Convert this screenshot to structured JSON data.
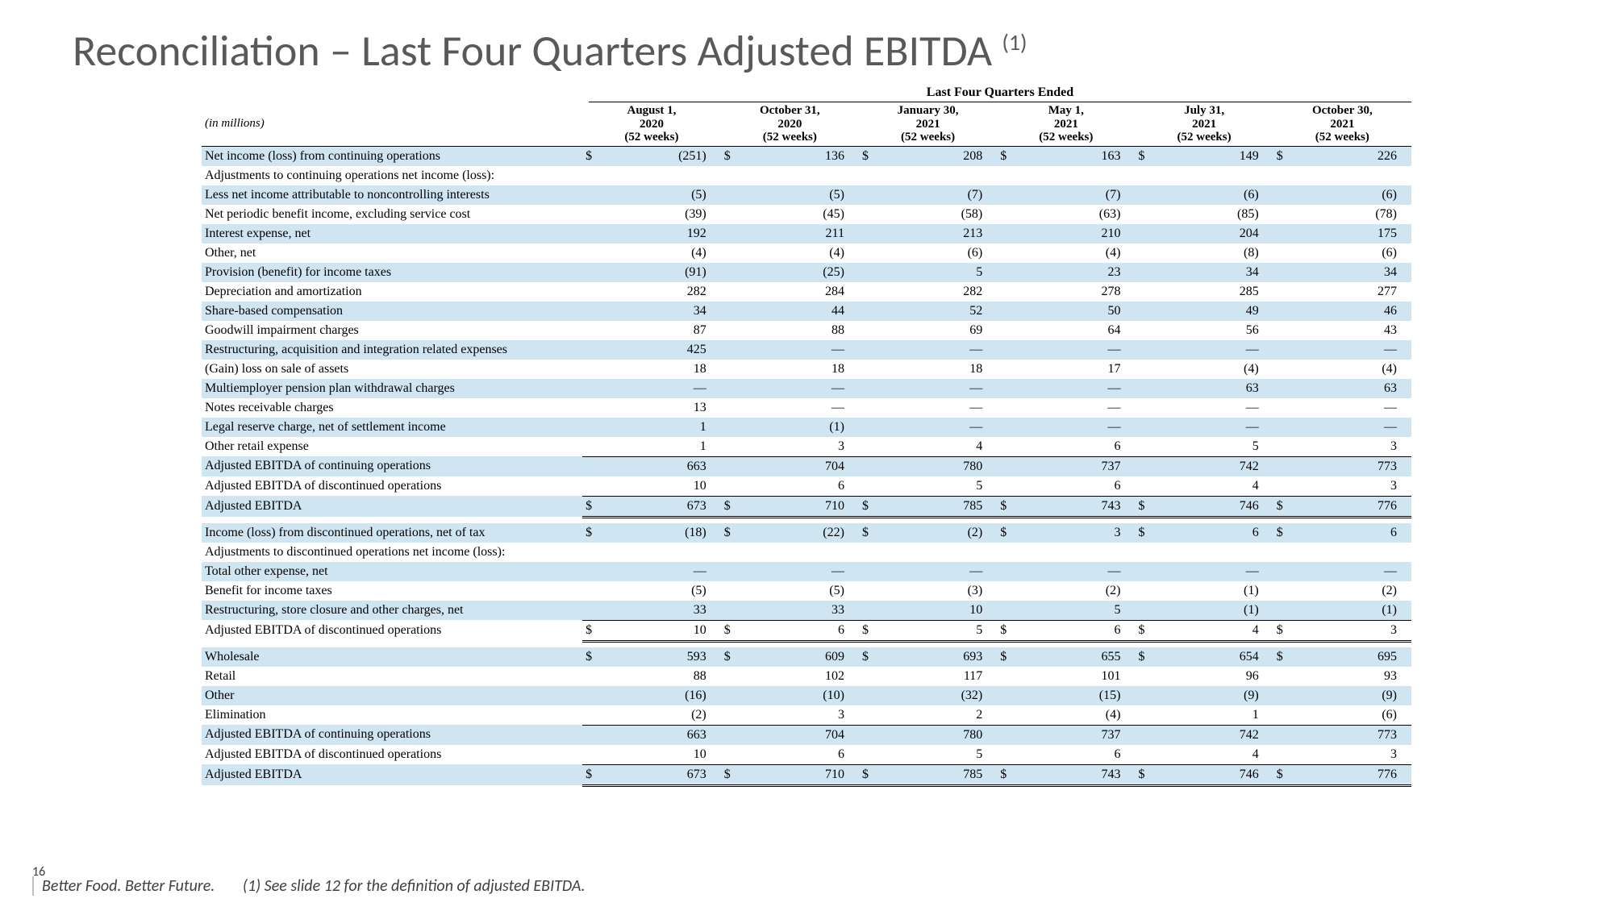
{
  "title_prefix": "Reconciliation – Last Four Quarters ",
  "title_main": "Adjusted EBITDA ",
  "title_super": "(1)",
  "spanner": "Last Four Quarters Ended",
  "units_label": "(in millions)",
  "page_number": "16",
  "footer_tag": "Better Food. Better Future.",
  "footnote": "(1) See slide 12 for the definition of adjusted EBITDA.",
  "colors": {
    "band": "#cfe6f2",
    "background": "#ffffff",
    "title": "#595959"
  },
  "columns": [
    {
      "line1": "August 1,",
      "line2": "2020",
      "line3": "(52 weeks)"
    },
    {
      "line1": "October 31,",
      "line2": "2020",
      "line3": "(52 weeks)"
    },
    {
      "line1": "January 30,",
      "line2": "2021",
      "line3": "(52 weeks)"
    },
    {
      "line1": "May 1,",
      "line2": "2021",
      "line3": "(52 weeks)"
    },
    {
      "line1": "July 31,",
      "line2": "2021",
      "line3": "(52 weeks)"
    },
    {
      "line1": "October 30,",
      "line2": "2021",
      "line3": "(52 weeks)"
    }
  ],
  "rows": [
    {
      "label": "Net income (loss) from continuing operations",
      "band": true,
      "cur": true,
      "vals": [
        "(251)",
        "136",
        "208",
        "163",
        "149",
        "226"
      ]
    },
    {
      "label": "Adjustments to continuing operations net income (loss):",
      "band": false,
      "cur": false,
      "vals": [
        "",
        "",
        "",
        "",
        "",
        ""
      ]
    },
    {
      "label": "Less net income attributable to noncontrolling interests",
      "band": true,
      "cur": false,
      "vals": [
        "(5)",
        "(5)",
        "(7)",
        "(7)",
        "(6)",
        "(6)"
      ]
    },
    {
      "label": "Net periodic benefit income, excluding service cost",
      "band": false,
      "cur": false,
      "vals": [
        "(39)",
        "(45)",
        "(58)",
        "(63)",
        "(85)",
        "(78)"
      ]
    },
    {
      "label": "Interest expense, net",
      "band": true,
      "cur": false,
      "vals": [
        "192",
        "211",
        "213",
        "210",
        "204",
        "175"
      ]
    },
    {
      "label": "Other, net",
      "band": false,
      "cur": false,
      "vals": [
        "(4)",
        "(4)",
        "(6)",
        "(4)",
        "(8)",
        "(6)"
      ]
    },
    {
      "label": "Provision (benefit) for income taxes",
      "band": true,
      "cur": false,
      "vals": [
        "(91)",
        "(25)",
        "5",
        "23",
        "34",
        "34"
      ]
    },
    {
      "label": "Depreciation and amortization",
      "band": false,
      "cur": false,
      "vals": [
        "282",
        "284",
        "282",
        "278",
        "285",
        "277"
      ]
    },
    {
      "label": "Share-based compensation",
      "band": true,
      "cur": false,
      "vals": [
        "34",
        "44",
        "52",
        "50",
        "49",
        "46"
      ]
    },
    {
      "label": "Goodwill impairment charges",
      "band": false,
      "cur": false,
      "vals": [
        "87",
        "88",
        "69",
        "64",
        "56",
        "43"
      ]
    },
    {
      "label": "Restructuring, acquisition and integration related expenses",
      "band": true,
      "cur": false,
      "vals": [
        "425",
        "—",
        "—",
        "—",
        "—",
        "—"
      ]
    },
    {
      "label": "(Gain) loss on sale of assets",
      "band": false,
      "cur": false,
      "vals": [
        "18",
        "18",
        "18",
        "17",
        "(4)",
        "(4)"
      ]
    },
    {
      "label": "Multiemployer pension plan withdrawal charges",
      "band": true,
      "cur": false,
      "vals": [
        "—",
        "—",
        "—",
        "—",
        "63",
        "63"
      ]
    },
    {
      "label": "Notes receivable charges",
      "band": false,
      "cur": false,
      "vals": [
        "13",
        "—",
        "—",
        "—",
        "—",
        "—"
      ]
    },
    {
      "label": "Legal reserve charge, net of settlement income",
      "band": true,
      "cur": false,
      "vals": [
        "1",
        "(1)",
        "—",
        "—",
        "—",
        "—"
      ]
    },
    {
      "label": "Other retail expense",
      "band": false,
      "cur": false,
      "vals": [
        "1",
        "3",
        "4",
        "6",
        "5",
        "3"
      ],
      "single_top_after": true
    },
    {
      "label": "Adjusted EBITDA of continuing operations",
      "band": true,
      "cur": false,
      "vals": [
        "663",
        "704",
        "780",
        "737",
        "742",
        "773"
      ],
      "single_top": true
    },
    {
      "label": "Adjusted EBITDA of discontinued operations",
      "band": false,
      "cur": false,
      "vals": [
        "10",
        "6",
        "5",
        "6",
        "4",
        "3"
      ]
    },
    {
      "label": "Adjusted EBITDA",
      "band": true,
      "cur": true,
      "vals": [
        "673",
        "710",
        "785",
        "743",
        "746",
        "776"
      ],
      "single_top": true,
      "double_bottom": true
    },
    {
      "spacer": true
    },
    {
      "label": "Income (loss) from discontinued operations, net of tax",
      "band": true,
      "cur": true,
      "vals": [
        "(18)",
        "(22)",
        "(2)",
        "3",
        "6",
        "6"
      ]
    },
    {
      "label": "Adjustments to discontinued operations net income (loss):",
      "band": false,
      "cur": false,
      "vals": [
        "",
        "",
        "",
        "",
        "",
        ""
      ]
    },
    {
      "label": "Total other expense, net",
      "band": true,
      "cur": false,
      "vals": [
        "—",
        "—",
        "—",
        "—",
        "—",
        "—"
      ]
    },
    {
      "label": "Benefit for income taxes",
      "band": false,
      "cur": false,
      "vals": [
        "(5)",
        "(5)",
        "(3)",
        "(2)",
        "(1)",
        "(2)"
      ]
    },
    {
      "label": "Restructuring, store closure and other charges, net",
      "band": true,
      "cur": false,
      "vals": [
        "33",
        "33",
        "10",
        "5",
        "(1)",
        "(1)"
      ]
    },
    {
      "label": "Adjusted EBITDA of discontinued operations",
      "band": false,
      "cur": true,
      "vals": [
        "10",
        "6",
        "5",
        "6",
        "4",
        "3"
      ],
      "single_top": true,
      "double_bottom": true
    },
    {
      "spacer": true
    },
    {
      "label": "Wholesale",
      "band": true,
      "cur": true,
      "vals": [
        "593",
        "609",
        "693",
        "655",
        "654",
        "695"
      ]
    },
    {
      "label": "Retail",
      "band": false,
      "cur": false,
      "vals": [
        "88",
        "102",
        "117",
        "101",
        "96",
        "93"
      ]
    },
    {
      "label": "Other",
      "band": true,
      "cur": false,
      "vals": [
        "(16)",
        "(10)",
        "(32)",
        "(15)",
        "(9)",
        "(9)"
      ]
    },
    {
      "label": "Elimination",
      "band": false,
      "cur": false,
      "vals": [
        "(2)",
        "3",
        "2",
        "(4)",
        "1",
        "(6)"
      ]
    },
    {
      "label": "Adjusted EBITDA of continuing operations",
      "band": true,
      "cur": false,
      "vals": [
        "663",
        "704",
        "780",
        "737",
        "742",
        "773"
      ],
      "single_top": true
    },
    {
      "label": "Adjusted EBITDA of discontinued operations",
      "band": false,
      "cur": false,
      "vals": [
        "10",
        "6",
        "5",
        "6",
        "4",
        "3"
      ]
    },
    {
      "label": "Adjusted EBITDA",
      "band": true,
      "cur": true,
      "vals": [
        "673",
        "710",
        "785",
        "743",
        "746",
        "776"
      ],
      "single_top": true,
      "double_bottom": true
    }
  ]
}
